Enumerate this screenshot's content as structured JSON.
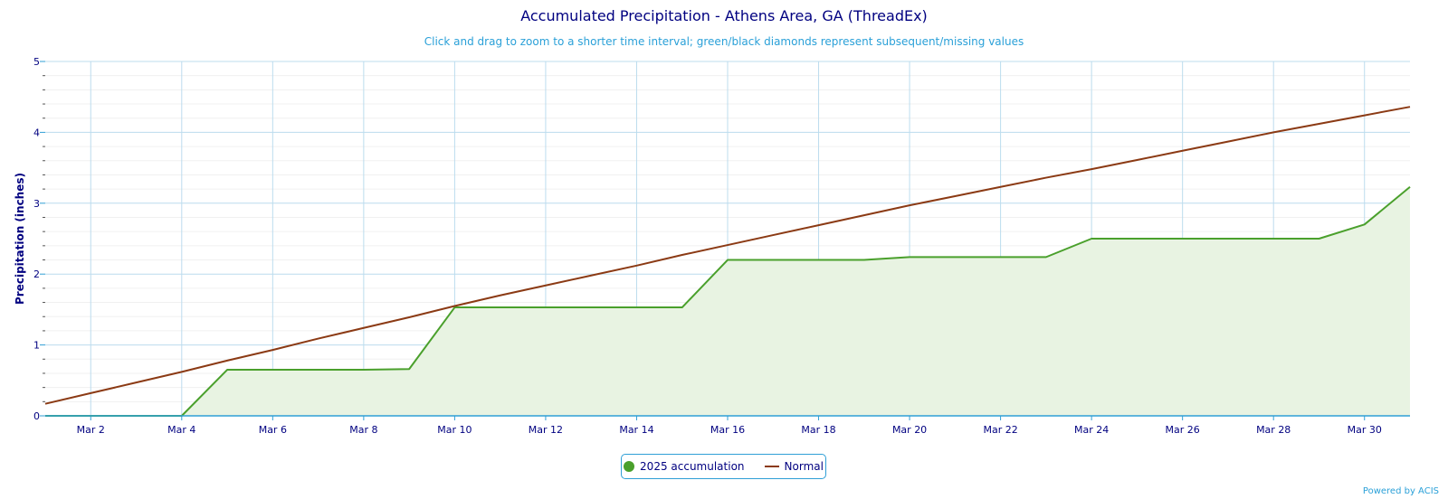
{
  "chart_data": {
    "type": "line",
    "title": "Accumulated Precipitation - Athens Area, GA (ThreadEx)",
    "subtitle": "Click and drag to zoom to a shorter time interval; green/black diamonds represent subsequent/missing values",
    "ylabel": "Precipitation (inches)",
    "xlabel": "",
    "ylim": [
      0,
      5
    ],
    "y_ticks": [
      "0",
      "1",
      "2",
      "3",
      "4",
      "5"
    ],
    "x_tick_labels": [
      "Mar 2",
      "Mar 4",
      "Mar 6",
      "Mar 8",
      "Mar 10",
      "Mar 12",
      "Mar 14",
      "Mar 16",
      "Mar 18",
      "Mar 20",
      "Mar 22",
      "Mar 24",
      "Mar 26",
      "Mar 28",
      "Mar 30"
    ],
    "x": [
      "Mar 1",
      "Mar 2",
      "Mar 3",
      "Mar 4",
      "Mar 5",
      "Mar 6",
      "Mar 7",
      "Mar 8",
      "Mar 9",
      "Mar 10",
      "Mar 11",
      "Mar 12",
      "Mar 13",
      "Mar 14",
      "Mar 15",
      "Mar 16",
      "Mar 17",
      "Mar 18",
      "Mar 19",
      "Mar 20",
      "Mar 21",
      "Mar 22",
      "Mar 23",
      "Mar 24",
      "Mar 25",
      "Mar 26",
      "Mar 27",
      "Mar 28",
      "Mar 29",
      "Mar 30",
      "Mar 31"
    ],
    "grid": true,
    "legend": "bottom-center",
    "series": [
      {
        "name": "2025 accumulation",
        "color": "#4aa02c",
        "fill": "area",
        "values": [
          0,
          0,
          0,
          0,
          0.65,
          0.65,
          0.65,
          0.65,
          0.66,
          1.53,
          1.53,
          1.53,
          1.53,
          1.53,
          1.53,
          2.2,
          2.2,
          2.2,
          2.2,
          2.24,
          2.24,
          2.24,
          2.24,
          2.5,
          2.5,
          2.5,
          2.5,
          2.5,
          2.5,
          2.7,
          3.23
        ]
      },
      {
        "name": "Normal",
        "color": "#8b3a14",
        "values": [
          0.17,
          0.32,
          0.47,
          0.62,
          0.78,
          0.93,
          1.09,
          1.24,
          1.39,
          1.55,
          1.7,
          1.84,
          1.98,
          2.12,
          2.27,
          2.41,
          2.55,
          2.69,
          2.83,
          2.97,
          3.1,
          3.23,
          3.36,
          3.48,
          3.61,
          3.74,
          3.87,
          4.0,
          4.12,
          4.24,
          4.36
        ]
      }
    ]
  },
  "credit": "Powered by ACIS"
}
